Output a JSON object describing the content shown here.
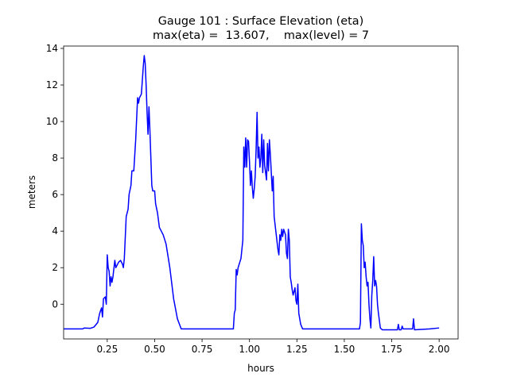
{
  "chart_data": {
    "type": "line",
    "title": [
      "Gauge 101 : Surface Elevation (eta)",
      "max(eta) =  13.607,    max(level) = 7"
    ],
    "xlabel": "hours",
    "ylabel": "meters",
    "xlim": [
      0.02,
      2.1
    ],
    "ylim": [
      -1.9,
      14.13
    ],
    "xticks": [
      0.25,
      {
        "value": 0.5,
        "label": "0.50"
      },
      0.75,
      {
        "value": 1.0,
        "label": "1.00"
      },
      1.25,
      {
        "value": 1.5,
        "label": "1.50"
      },
      1.75,
      {
        "value": 2.0,
        "label": "2.00"
      }
    ],
    "yticks": [
      0,
      2,
      4,
      6,
      8,
      10,
      12,
      14
    ],
    "series": [
      {
        "color": "#0000ff",
        "x": [
          0.02,
          0.12,
          0.13,
          0.16,
          0.18,
          0.2,
          0.21,
          0.22,
          0.225,
          0.23,
          0.24,
          0.245,
          0.25,
          0.255,
          0.26,
          0.265,
          0.27,
          0.275,
          0.28,
          0.29,
          0.295,
          0.3,
          0.31,
          0.32,
          0.33,
          0.335,
          0.34,
          0.35,
          0.36,
          0.365,
          0.375,
          0.38,
          0.39,
          0.4,
          0.41,
          0.415,
          0.42,
          0.43,
          0.44,
          0.445,
          0.45,
          0.455,
          0.46,
          0.465,
          0.47,
          0.475,
          0.48,
          0.485,
          0.49,
          0.5,
          0.505,
          0.515,
          0.525,
          0.535,
          0.545,
          0.56,
          0.58,
          0.6,
          0.62,
          0.64,
          0.915,
          0.92,
          0.925,
          0.93,
          0.935,
          0.94,
          0.955,
          0.965,
          0.97,
          0.975,
          0.98,
          0.985,
          0.99,
          0.995,
          1.0,
          1.005,
          1.01,
          1.015,
          1.02,
          1.025,
          1.03,
          1.035,
          1.04,
          1.045,
          1.05,
          1.055,
          1.06,
          1.065,
          1.07,
          1.075,
          1.08,
          1.09,
          1.095,
          1.1,
          1.105,
          1.11,
          1.12,
          1.125,
          1.13,
          1.14,
          1.15,
          1.155,
          1.16,
          1.165,
          1.17,
          1.175,
          1.18,
          1.19,
          1.195,
          1.2,
          1.205,
          1.21,
          1.215,
          1.22,
          1.225,
          1.23,
          1.24,
          1.245,
          1.25,
          1.255,
          1.26,
          1.27,
          1.28,
          1.58,
          1.585,
          1.59,
          1.595,
          1.6,
          1.605,
          1.61,
          1.615,
          1.62,
          1.625,
          1.63,
          1.635,
          1.64,
          1.645,
          1.65,
          1.655,
          1.66,
          1.665,
          1.67,
          1.675,
          1.68,
          1.69,
          1.7,
          1.78,
          1.785,
          1.79,
          1.8,
          1.805,
          1.81,
          1.86,
          1.865,
          1.87,
          1.95,
          2.0
        ],
        "values": [
          -1.35,
          -1.35,
          -1.3,
          -1.32,
          -1.25,
          -1.0,
          -0.5,
          -0.2,
          -0.7,
          0.3,
          0.4,
          0.0,
          2.7,
          2.0,
          1.8,
          1.0,
          1.5,
          1.2,
          1.5,
          2.4,
          2.0,
          2.1,
          2.3,
          2.4,
          2.2,
          2.0,
          2.5,
          4.8,
          5.2,
          6.0,
          6.5,
          7.3,
          7.3,
          9.0,
          11.3,
          11.0,
          11.3,
          11.5,
          13.0,
          13.607,
          13.2,
          12.0,
          10.5,
          9.3,
          10.8,
          9.5,
          8.0,
          6.5,
          6.2,
          6.2,
          5.5,
          5.0,
          4.2,
          4.0,
          3.8,
          3.3,
          2.0,
          0.3,
          -0.8,
          -1.35,
          -1.35,
          -0.5,
          -0.3,
          1.9,
          1.6,
          2.0,
          2.5,
          3.5,
          8.6,
          7.5,
          9.1,
          7.5,
          9.0,
          8.9,
          7.8,
          6.5,
          7.3,
          6.4,
          5.8,
          6.3,
          7.0,
          8.5,
          10.5,
          8.0,
          8.6,
          7.5,
          8.0,
          9.3,
          7.2,
          9.0,
          7.6,
          6.8,
          8.8,
          7.3,
          9.0,
          8.2,
          6.2,
          7.0,
          4.8,
          3.9,
          3.0,
          2.7,
          3.8,
          3.5,
          4.1,
          3.7,
          4.1,
          3.8,
          2.8,
          2.5,
          4.1,
          3.5,
          1.5,
          1.2,
          0.8,
          0.5,
          0.9,
          0.2,
          0.0,
          1.1,
          -0.5,
          -1.1,
          -1.35,
          -1.35,
          -1.0,
          4.4,
          3.5,
          3.2,
          2.0,
          2.3,
          1.5,
          1.0,
          1.2,
          0.0,
          -0.8,
          -1.3,
          0.5,
          1.3,
          2.6,
          1.0,
          1.3,
          1.0,
          0.0,
          -0.5,
          -1.3,
          -1.4,
          -1.4,
          -1.1,
          -1.4,
          -1.4,
          -1.2,
          -1.35,
          -1.35,
          -0.8,
          -1.4,
          -1.35,
          -1.3
        ]
      }
    ]
  }
}
